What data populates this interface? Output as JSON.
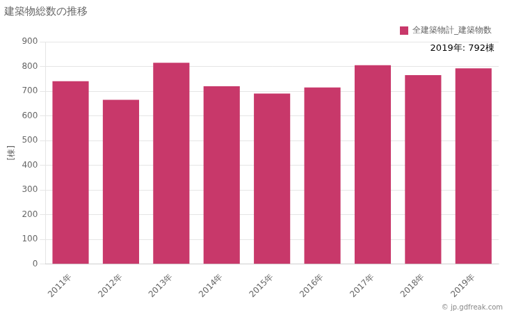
{
  "chart_data": {
    "type": "bar",
    "title": "建築物総数の推移",
    "y_label": "[棟]",
    "categories": [
      "2011年",
      "2012年",
      "2013年",
      "2014年",
      "2015年",
      "2016年",
      "2017年",
      "2018年",
      "2019年"
    ],
    "series": [
      {
        "name": "全建築物計_建築物数",
        "color": "#c8386a",
        "values": [
          740,
          665,
          815,
          720,
          690,
          715,
          805,
          765,
          792
        ]
      }
    ],
    "ylim": [
      0,
      900
    ],
    "yticks": [
      0,
      100,
      200,
      300,
      400,
      500,
      600,
      700,
      800,
      900
    ],
    "grid": true,
    "legend": "top",
    "annotations": [
      "2019年: 792棟",
      "© jp.gdfreak.com"
    ]
  }
}
